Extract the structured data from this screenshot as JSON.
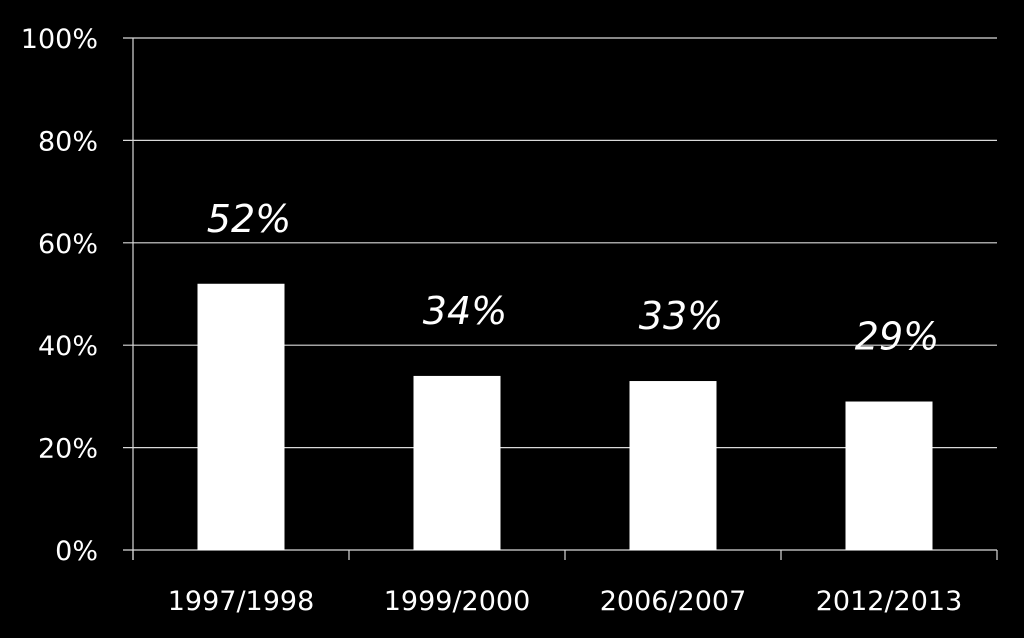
{
  "chart_data": {
    "type": "bar",
    "categories": [
      "1997/1998",
      "1999/2000",
      "2006/2007",
      "2012/2013"
    ],
    "values": [
      52,
      34,
      33,
      29
    ],
    "data_labels": [
      "52%",
      "34%",
      "33%",
      "29%"
    ],
    "y_ticks": [
      0,
      20,
      40,
      60,
      80,
      100
    ],
    "y_tick_labels": [
      "0%",
      "20%",
      "40%",
      "60%",
      "80%",
      "100%"
    ],
    "ylim": [
      0,
      100
    ],
    "grid": true,
    "legend": "none",
    "title": "",
    "xlabel": "",
    "ylabel": ""
  },
  "colors": {
    "background": "#000000",
    "bar": "#ffffff",
    "grid": "#d9d9d9",
    "text": "#ffffff"
  }
}
